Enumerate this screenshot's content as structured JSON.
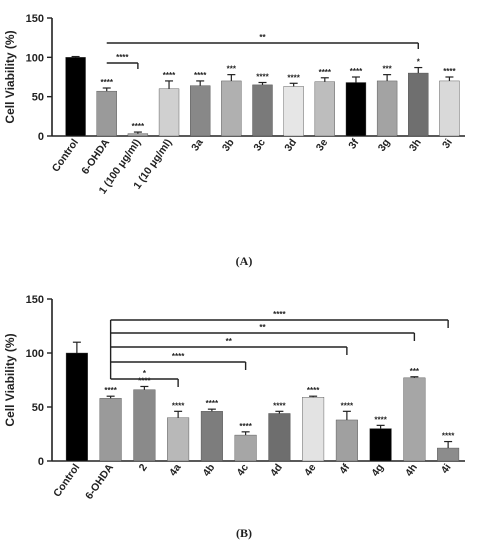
{
  "chart_data": [
    {
      "type": "bar",
      "panel_label": "(A)",
      "ylabel": "Cell Viability (%)",
      "ylim": [
        0,
        150
      ],
      "yticks": [
        "0",
        "50",
        "100",
        "150"
      ],
      "categories": [
        "Control",
        "6-OHDA",
        "1 (100 μg/ml)",
        "1 (10 μg/ml)",
        "3a",
        "3b",
        "3c",
        "3d",
        "3e",
        "3f",
        "3g",
        "3h",
        "3i"
      ],
      "values": [
        100,
        57,
        3,
        60,
        64,
        70,
        65,
        63,
        69,
        68,
        70,
        80,
        70
      ],
      "errors": [
        1,
        4,
        2,
        10,
        6,
        8,
        3,
        4,
        5,
        7,
        8,
        7,
        5
      ],
      "colors": [
        "#000000",
        "#9a9a9a",
        "#a8a8a8",
        "#d0d0d0",
        "#888888",
        "#b0b0b0",
        "#7a7a7a",
        "#e6e6e6",
        "#bdbdbd",
        "#000000",
        "#a3a3a3",
        "#6f6f6f",
        "#d9d9d9"
      ],
      "bar_labels": [
        "",
        "****",
        "****",
        "****",
        "****",
        "***",
        "****",
        "****",
        "****",
        "****",
        "***",
        "*",
        "****"
      ],
      "comparisons": [
        {
          "from": 1,
          "to": 2,
          "label": "****"
        },
        {
          "from": 1,
          "to": 11,
          "label": "**"
        }
      ]
    },
    {
      "type": "bar",
      "panel_label": "(B)",
      "ylabel": "Cell Viability (%)",
      "ylim": [
        0,
        150
      ],
      "yticks": [
        "0",
        "50",
        "100",
        "150"
      ],
      "categories": [
        "Control",
        "6-OHDA",
        "2",
        "4a",
        "4b",
        "4c",
        "4d",
        "4e",
        "4f",
        "4g",
        "4h",
        "4i"
      ],
      "values": [
        100,
        58,
        66,
        40,
        46,
        24,
        44,
        59,
        38,
        30,
        77,
        12
      ],
      "errors": [
        10,
        2,
        3,
        6,
        2,
        3,
        2,
        1,
        8,
        3,
        1,
        6
      ],
      "colors": [
        "#000000",
        "#9a9a9a",
        "#8a8a8a",
        "#b8b8b8",
        "#7d7d7d",
        "#a6a6a6",
        "#6e6e6e",
        "#e3e3e3",
        "#a0a0a0",
        "#000000",
        "#a6a6a6",
        "#8c8c8c"
      ],
      "bar_labels": [
        "",
        "****",
        "****",
        "****",
        "****",
        "****",
        "****",
        "****",
        "****",
        "****",
        "***",
        "****"
      ],
      "comparisons": [
        {
          "from": 1,
          "to": 3,
          "label": "*"
        },
        {
          "from": 1,
          "to": 5,
          "label": "****"
        },
        {
          "from": 1,
          "to": 8,
          "label": "**"
        },
        {
          "from": 1,
          "to": 10,
          "label": "**"
        },
        {
          "from": 1,
          "to": 11,
          "label": "****"
        }
      ]
    }
  ]
}
